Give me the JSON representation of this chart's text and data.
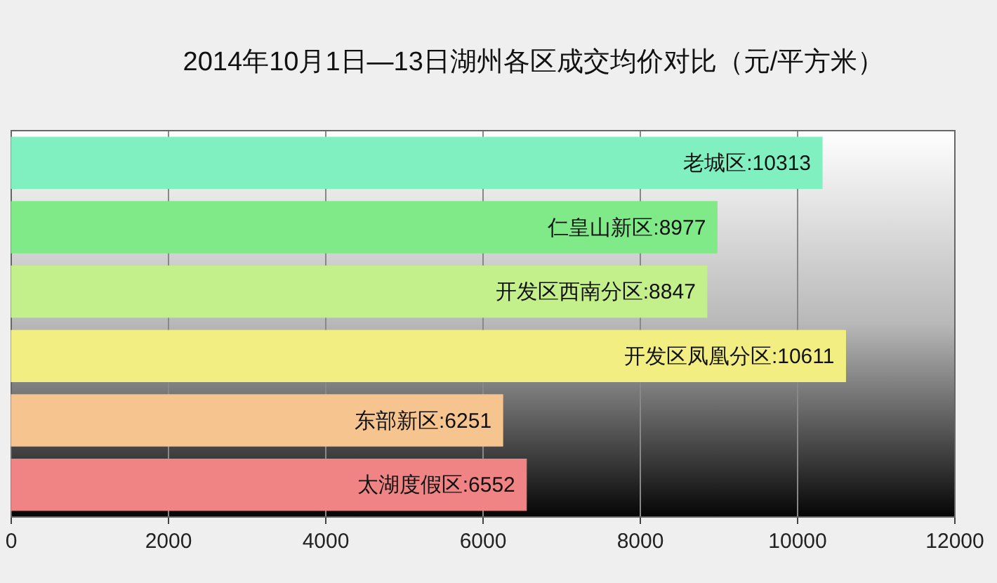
{
  "chart_data": {
    "type": "bar",
    "orientation": "horizontal",
    "title": "2014年10月1日—13日湖州各区成交均价对比（元/平方米）",
    "categories": [
      null,
      null,
      null,
      null,
      null,
      null
    ],
    "values": [
      10313,
      8977,
      8847,
      10611,
      6251,
      6552
    ],
    "colors": [
      "#80f0c0",
      "#80ea88",
      "#c4f08c",
      "#f2ee82",
      "#f6c48e",
      "#f08484"
    ],
    "value_labels": [
      "老城区:10313",
      "仁皇山新区:8977",
      "开发区西南分区:8847",
      "开发区凤凰分区:10611",
      "东部新区:6251",
      "太湖度假区:6552"
    ],
    "xlim": [
      0,
      12000
    ],
    "xticks": [
      0,
      2000,
      4000,
      6000,
      8000,
      10000,
      12000
    ],
    "grid": "x"
  }
}
